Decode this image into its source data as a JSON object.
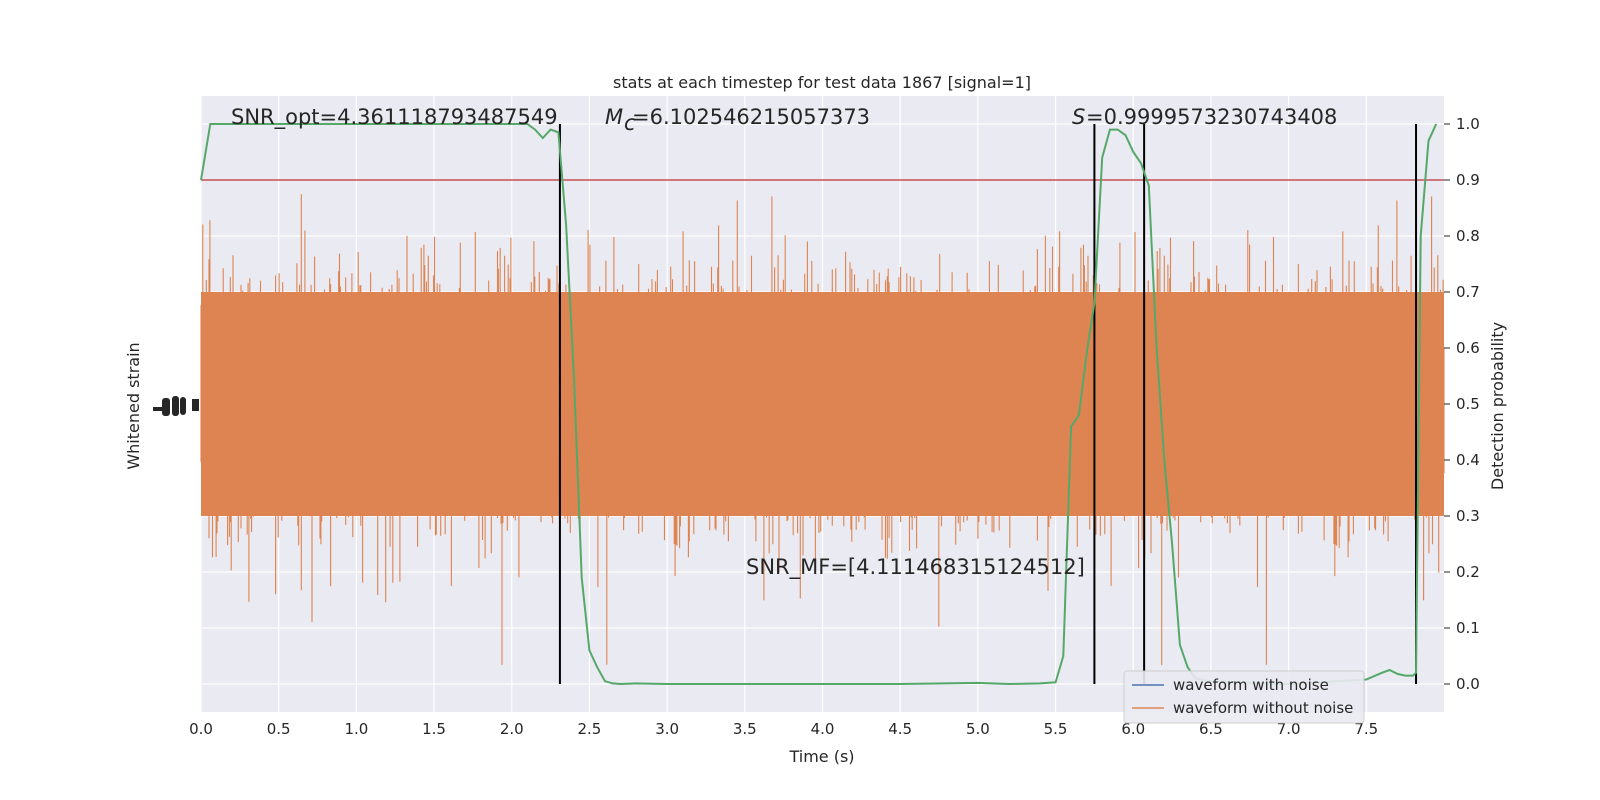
{
  "chart_data": {
    "type": "line",
    "title": "stats at each timestep for test data 1867 [signal=1]",
    "xlabel": "Time (s)",
    "ylabel_left": "Whitened strain",
    "ylabel_right": "Detection probability",
    "xlim": [
      0,
      8
    ],
    "ylim_right": [
      -0.05,
      1.05
    ],
    "x_ticks": [
      "0.0",
      "0.5",
      "1.0",
      "1.5",
      "2.0",
      "2.5",
      "3.0",
      "3.5",
      "4.0",
      "4.5",
      "5.0",
      "5.5",
      "6.0",
      "6.5",
      "7.0",
      "7.5"
    ],
    "y_ticks_right": [
      "0.0",
      "0.1",
      "0.2",
      "0.3",
      "0.4",
      "0.5",
      "0.6",
      "0.7",
      "0.8",
      "0.9",
      "1.0"
    ],
    "grid": true,
    "legend_position": "lower-right",
    "legend": [
      {
        "label": "waveform with noise",
        "color": "#4c72b0"
      },
      {
        "label": "waveform without noise",
        "color": "#dd8452"
      }
    ],
    "annotations": {
      "snr_opt": "SNR_opt=4.361118793487549",
      "mc": "=6.102546215057373",
      "s": "=0.9999573230743408",
      "snr_mf": "SNR_MF=[4.111468315124512]"
    },
    "threshold": 0.9,
    "vertical_lines_x": [
      2.31,
      5.75,
      6.07,
      7.82
    ],
    "probability_series": {
      "name": "Detection probability",
      "color": "#55a868",
      "x": [
        0.0,
        0.06,
        0.2,
        0.5,
        1.0,
        1.5,
        2.0,
        2.1,
        2.15,
        2.2,
        2.25,
        2.3,
        2.35,
        2.4,
        2.45,
        2.5,
        2.55,
        2.6,
        2.65,
        2.7,
        2.8,
        3.0,
        3.5,
        4.0,
        4.5,
        5.0,
        5.2,
        5.4,
        5.5,
        5.55,
        5.6,
        5.65,
        5.7,
        5.75,
        5.8,
        5.85,
        5.9,
        5.95,
        6.0,
        6.05,
        6.1,
        6.15,
        6.2,
        6.25,
        6.3,
        6.35,
        6.4,
        6.5,
        7.0,
        7.5,
        7.6,
        7.65,
        7.7,
        7.75,
        7.8,
        7.82,
        7.85,
        7.9,
        7.95
      ],
      "y": [
        0.9,
        1.0,
        1.0,
        1.0,
        1.0,
        1.0,
        1.0,
        1.0,
        0.99,
        0.975,
        0.99,
        0.985,
        0.82,
        0.55,
        0.19,
        0.06,
        0.03,
        0.005,
        0.001,
        0.0,
        0.001,
        0.0,
        0.0,
        0.0,
        0.0,
        0.002,
        0.0,
        0.001,
        0.003,
        0.05,
        0.46,
        0.48,
        0.59,
        0.68,
        0.94,
        0.99,
        0.99,
        0.98,
        0.95,
        0.93,
        0.89,
        0.6,
        0.4,
        0.25,
        0.07,
        0.03,
        0.01,
        0.005,
        0.0,
        0.008,
        0.02,
        0.025,
        0.018,
        0.015,
        0.015,
        0.02,
        0.8,
        0.97,
        1.0
      ]
    }
  }
}
